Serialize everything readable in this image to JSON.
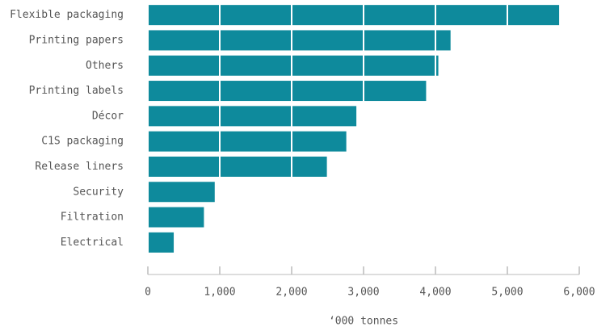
{
  "chart_data": {
    "type": "bar",
    "orientation": "horizontal",
    "categories": [
      "Flexible packaging",
      "Printing papers",
      "Others",
      "Printing labels",
      "Décor",
      "C1S packaging",
      "Release liners",
      "Security",
      "Filtration",
      "Electrical"
    ],
    "values": [
      5720,
      4210,
      4040,
      3870,
      2900,
      2760,
      2490,
      930,
      780,
      360
    ],
    "color": "#0e8a9c",
    "xlabel": "‘000 tonnes",
    "xlim": [
      0,
      6000
    ],
    "xticks": [
      0,
      {
        "value": 1000,
        "label": "1,000"
      },
      {
        "value": 2000,
        "label": "2,000"
      },
      {
        "value": 3000,
        "label": "3,000"
      },
      {
        "value": 4000,
        "label": "4,000"
      },
      {
        "value": 5000,
        "label": "5,000"
      },
      {
        "value": 6000,
        "label": "6,000"
      }
    ],
    "grid": true
  }
}
